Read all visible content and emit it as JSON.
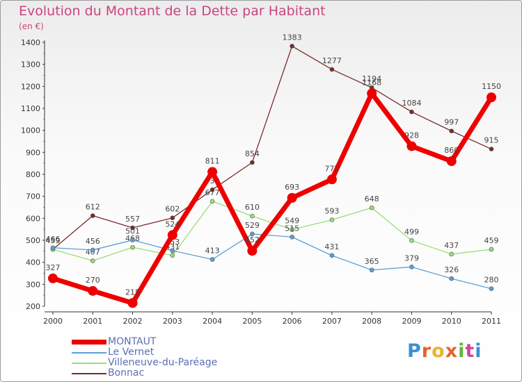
{
  "title": "Evolution du Montant de la Dette par Habitant",
  "unit": "(en €)",
  "brand": {
    "letters": [
      "P",
      "r",
      "o",
      "x",
      "i",
      "t",
      "i"
    ],
    "colors": [
      "#3d8fd0",
      "#e8632a",
      "#e8b52a",
      "#e8632a",
      "#5fb53d",
      "#d14a9a",
      "#3d8fd0"
    ]
  },
  "chart_data": {
    "type": "line",
    "title": "Evolution du Montant de la Dette par Habitant",
    "ylabel": "(en €)",
    "x": [
      "2000",
      "2001",
      "2002",
      "2003",
      "2004",
      "2005",
      "2006",
      "2007",
      "2008",
      "2009",
      "2010",
      "2011"
    ],
    "ylim": [
      200,
      1400
    ],
    "yticks": [
      200,
      300,
      400,
      500,
      600,
      700,
      800,
      900,
      1000,
      1100,
      1200,
      1300,
      1400
    ],
    "legend_position": "bottom-left",
    "grid": false,
    "series": [
      {
        "name": "Bonnac",
        "color": "#7a2a2a",
        "values": [
          459,
          612,
          557,
          602,
          730,
          854,
          1383,
          1277,
          1194,
          1084,
          997,
          915
        ]
      },
      {
        "name": "Villeneuve-du-Paréage",
        "color": "#99dd77",
        "values": [
          459,
          407,
          468,
          431,
          677,
          610,
          549,
          593,
          648,
          499,
          437,
          459
        ]
      },
      {
        "name": "Le Vernet",
        "color": "#5c9fd6",
        "values": [
          466,
          456,
          501,
          453,
          413,
          529,
          515,
          431,
          365,
          379,
          326,
          280
        ]
      },
      {
        "name": "MONTAUT",
        "color": "#ee0000",
        "values": [
          327,
          270,
          215,
          524,
          811,
          452,
          693,
          777,
          1168,
          928,
          860,
          1150
        ]
      }
    ],
    "legend": [
      "MONTAUT",
      "Le Vernet",
      "Villeneuve-du-Paréage",
      "Bonnac"
    ]
  }
}
